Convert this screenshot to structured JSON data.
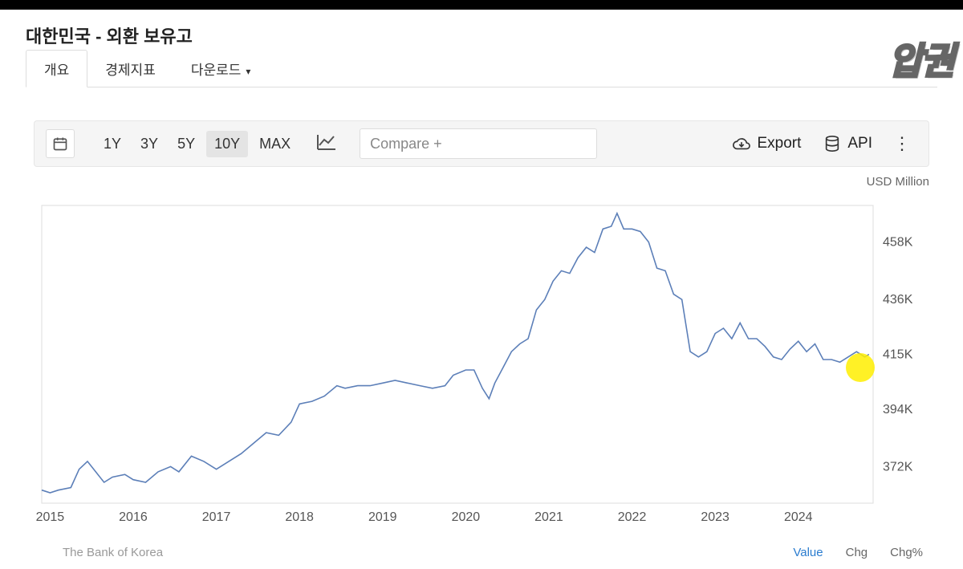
{
  "header": {
    "title": "대한민국 - 외환 보유고"
  },
  "tabs": [
    {
      "label": "개요",
      "active": true
    },
    {
      "label": "경제지표",
      "active": false
    },
    {
      "label": "다운로드",
      "active": false,
      "has_dropdown": true
    }
  ],
  "toolbar": {
    "ranges": [
      "1Y",
      "3Y",
      "5Y",
      "10Y",
      "MAX"
    ],
    "active_range_index": 3,
    "compare_placeholder": "Compare +",
    "export_label": "Export",
    "api_label": "API"
  },
  "watermark": {
    "text": "압권"
  },
  "footer": {
    "modes": [
      "Value",
      "Chg",
      "Chg%"
    ],
    "active_mode_index": 0
  },
  "chart": {
    "type": "line",
    "unit": "USD Million",
    "source": "The Bank of Korea",
    "line_color": "#5c7fb8",
    "line_width": 1.6,
    "background_color": "#ffffff",
    "axis_color": "#dddddd",
    "tick_label_color": "#555555",
    "tick_fontsize": 16,
    "y_ticks": [
      372000,
      394000,
      415000,
      436000,
      458000
    ],
    "y_tick_labels": [
      "372K",
      "394K",
      "415K",
      "436K",
      "458K"
    ],
    "ylim": [
      358000,
      472000
    ],
    "x_ticks_years": [
      2015,
      2016,
      2017,
      2018,
      2019,
      2020,
      2021,
      2022,
      2023,
      2024
    ],
    "x_domain": [
      2014.9,
      2024.9
    ],
    "cursor_highlight": {
      "x_year": 2024.75,
      "y_value": 410000,
      "radius": 18,
      "color": "#ffee00"
    },
    "series": [
      {
        "x": 2014.9,
        "y": 363000
      },
      {
        "x": 2015.0,
        "y": 362000
      },
      {
        "x": 2015.1,
        "y": 363000
      },
      {
        "x": 2015.25,
        "y": 364000
      },
      {
        "x": 2015.35,
        "y": 371000
      },
      {
        "x": 2015.45,
        "y": 374000
      },
      {
        "x": 2015.55,
        "y": 370000
      },
      {
        "x": 2015.65,
        "y": 366000
      },
      {
        "x": 2015.75,
        "y": 368000
      },
      {
        "x": 2015.9,
        "y": 369000
      },
      {
        "x": 2016.0,
        "y": 367000
      },
      {
        "x": 2016.15,
        "y": 366000
      },
      {
        "x": 2016.3,
        "y": 370000
      },
      {
        "x": 2016.45,
        "y": 372000
      },
      {
        "x": 2016.55,
        "y": 370000
      },
      {
        "x": 2016.7,
        "y": 376000
      },
      {
        "x": 2016.85,
        "y": 374000
      },
      {
        "x": 2017.0,
        "y": 371000
      },
      {
        "x": 2017.15,
        "y": 374000
      },
      {
        "x": 2017.3,
        "y": 377000
      },
      {
        "x": 2017.45,
        "y": 381000
      },
      {
        "x": 2017.6,
        "y": 385000
      },
      {
        "x": 2017.75,
        "y": 384000
      },
      {
        "x": 2017.9,
        "y": 389000
      },
      {
        "x": 2018.0,
        "y": 396000
      },
      {
        "x": 2018.15,
        "y": 397000
      },
      {
        "x": 2018.3,
        "y": 399000
      },
      {
        "x": 2018.45,
        "y": 403000
      },
      {
        "x": 2018.55,
        "y": 402000
      },
      {
        "x": 2018.7,
        "y": 403000
      },
      {
        "x": 2018.85,
        "y": 403000
      },
      {
        "x": 2019.0,
        "y": 404000
      },
      {
        "x": 2019.15,
        "y": 405000
      },
      {
        "x": 2019.3,
        "y": 404000
      },
      {
        "x": 2019.45,
        "y": 403000
      },
      {
        "x": 2019.6,
        "y": 402000
      },
      {
        "x": 2019.75,
        "y": 403000
      },
      {
        "x": 2019.85,
        "y": 407000
      },
      {
        "x": 2020.0,
        "y": 409000
      },
      {
        "x": 2020.1,
        "y": 409000
      },
      {
        "x": 2020.2,
        "y": 402000
      },
      {
        "x": 2020.28,
        "y": 398000
      },
      {
        "x": 2020.35,
        "y": 404000
      },
      {
        "x": 2020.45,
        "y": 410000
      },
      {
        "x": 2020.55,
        "y": 416000
      },
      {
        "x": 2020.65,
        "y": 419000
      },
      {
        "x": 2020.75,
        "y": 421000
      },
      {
        "x": 2020.85,
        "y": 432000
      },
      {
        "x": 2020.95,
        "y": 436000
      },
      {
        "x": 2021.05,
        "y": 443000
      },
      {
        "x": 2021.15,
        "y": 447000
      },
      {
        "x": 2021.25,
        "y": 446000
      },
      {
        "x": 2021.35,
        "y": 452000
      },
      {
        "x": 2021.45,
        "y": 456000
      },
      {
        "x": 2021.55,
        "y": 454000
      },
      {
        "x": 2021.65,
        "y": 463000
      },
      {
        "x": 2021.75,
        "y": 464000
      },
      {
        "x": 2021.82,
        "y": 469000
      },
      {
        "x": 2021.9,
        "y": 463000
      },
      {
        "x": 2022.0,
        "y": 463000
      },
      {
        "x": 2022.1,
        "y": 462000
      },
      {
        "x": 2022.2,
        "y": 458000
      },
      {
        "x": 2022.3,
        "y": 448000
      },
      {
        "x": 2022.4,
        "y": 447000
      },
      {
        "x": 2022.5,
        "y": 438000
      },
      {
        "x": 2022.6,
        "y": 436000
      },
      {
        "x": 2022.7,
        "y": 416000
      },
      {
        "x": 2022.8,
        "y": 414000
      },
      {
        "x": 2022.9,
        "y": 416000
      },
      {
        "x": 2023.0,
        "y": 423000
      },
      {
        "x": 2023.1,
        "y": 425000
      },
      {
        "x": 2023.2,
        "y": 421000
      },
      {
        "x": 2023.3,
        "y": 427000
      },
      {
        "x": 2023.4,
        "y": 421000
      },
      {
        "x": 2023.5,
        "y": 421000
      },
      {
        "x": 2023.6,
        "y": 418000
      },
      {
        "x": 2023.7,
        "y": 414000
      },
      {
        "x": 2023.8,
        "y": 413000
      },
      {
        "x": 2023.9,
        "y": 417000
      },
      {
        "x": 2024.0,
        "y": 420000
      },
      {
        "x": 2024.1,
        "y": 416000
      },
      {
        "x": 2024.2,
        "y": 419000
      },
      {
        "x": 2024.3,
        "y": 413000
      },
      {
        "x": 2024.4,
        "y": 413000
      },
      {
        "x": 2024.5,
        "y": 412000
      },
      {
        "x": 2024.6,
        "y": 414000
      },
      {
        "x": 2024.7,
        "y": 416000
      },
      {
        "x": 2024.8,
        "y": 414000
      },
      {
        "x": 2024.85,
        "y": 415000
      }
    ]
  }
}
